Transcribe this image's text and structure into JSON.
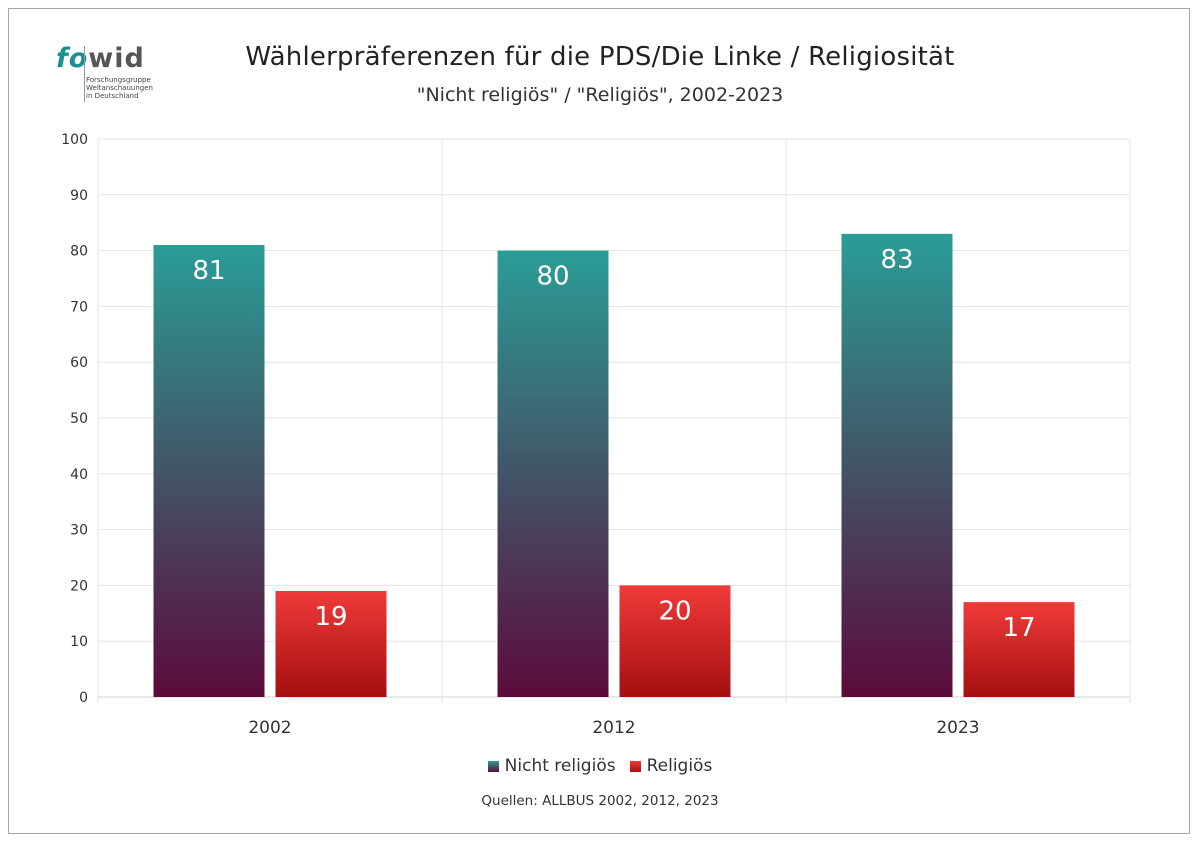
{
  "logo": {
    "word_fo": "fo",
    "word_wid": "wid",
    "sub1": "Forschungsgruppe",
    "sub2": "Weltanschauungen",
    "sub3": "in Deutschland"
  },
  "footer": {
    "source": "Quellen: ALLBUS  2002, 2012, 2023"
  },
  "colors": {
    "nicht_top": "#2a9d96",
    "nicht_bottom": "#5b0b3a",
    "rel_top": "#f03a3a",
    "rel_bottom": "#a50f0f"
  },
  "chart_data": {
    "type": "bar",
    "title": "Wählerpräferenzen für die PDS/Die Linke / Religiosität",
    "subtitle": "\"Nicht religiös\" / \"Religiös\", 2002-2023",
    "categories": [
      "2002",
      "2012",
      "2023"
    ],
    "series": [
      {
        "name": "Nicht religiös",
        "values": [
          81,
          80,
          83
        ]
      },
      {
        "name": "Religiös",
        "values": [
          19,
          20,
          17
        ]
      }
    ],
    "ylim": [
      0,
      100
    ],
    "yticks": [
      0,
      10,
      20,
      30,
      40,
      50,
      60,
      70,
      80,
      90,
      100
    ],
    "grid": true,
    "legend": "bottom",
    "data_labels": true
  }
}
